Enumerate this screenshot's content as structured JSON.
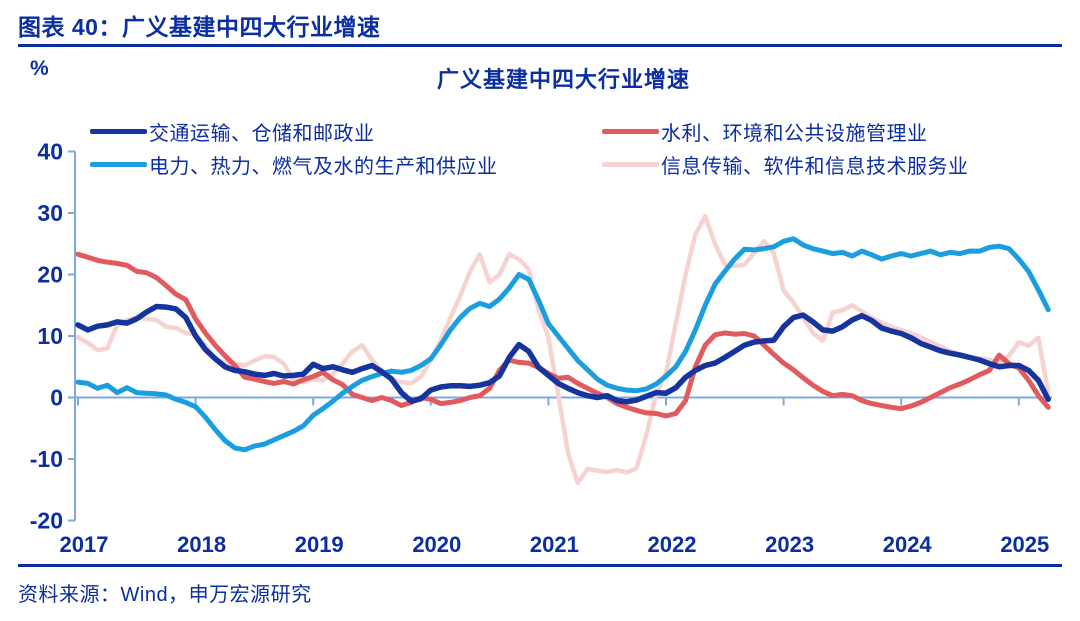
{
  "page": {
    "figure_label": "图表 40：广义基建中四大行业增速",
    "source": "资料来源：Wind，申万宏源研究"
  },
  "colors": {
    "text_navy": "#0B2EA0",
    "axis_blue": "#7FA8DC",
    "navy_line": "#16349E",
    "red_line": "#E15A5E",
    "cyan_line": "#1B9EE0",
    "pink_line": "#F6D2D0"
  },
  "chart_data": {
    "type": "line",
    "title": "广义基建中四大行业增速",
    "ylabel": "%",
    "xlabel": "",
    "grid": false,
    "legend_position": "top",
    "ylim": [
      -20,
      40
    ],
    "yticks": [
      40,
      30,
      20,
      10,
      0,
      -10,
      -20
    ],
    "xtick_labels": [
      "2017",
      "2018",
      "2019",
      "2020",
      "2021",
      "2022",
      "2023",
      "2024",
      "2025"
    ],
    "x_start": "2017-01",
    "x_end": "2025-04",
    "x_frequency": "monthly",
    "series": [
      {
        "name": "交通运输、仓储和邮政业",
        "color": "#16349E",
        "width": 5.5,
        "values": [
          11.8,
          11.0,
          11.6,
          11.8,
          12.3,
          12.1,
          12.8,
          13.9,
          14.8,
          14.7,
          14.4,
          13.0,
          10.0,
          7.8,
          6.3,
          5.0,
          4.4,
          4.2,
          3.8,
          3.6,
          3.9,
          3.5,
          3.6,
          3.8,
          5.4,
          4.7,
          5.0,
          4.5,
          4.1,
          4.7,
          5.2,
          4.2,
          3.0,
          0.8,
          -0.6,
          -0.2,
          1.2,
          1.7,
          1.9,
          1.9,
          1.8,
          2.0,
          2.4,
          3.5,
          6.5,
          8.6,
          7.5,
          4.9,
          3.6,
          2.3,
          1.5,
          0.8,
          0.3,
          0.0,
          0.3,
          -0.5,
          -0.7,
          -0.4,
          0.2,
          0.8,
          0.7,
          1.6,
          3.3,
          4.4,
          5.2,
          5.6,
          6.5,
          7.5,
          8.5,
          9.0,
          9.2,
          9.3,
          11.5,
          13.0,
          13.4,
          12.3,
          11.0,
          10.8,
          11.5,
          12.6,
          13.3,
          12.5,
          11.3,
          10.8,
          10.4,
          9.7,
          8.8,
          8.2,
          7.6,
          7.2,
          6.9,
          6.5,
          6.1,
          5.5,
          5.0,
          5.2,
          5.2,
          4.4,
          2.8,
          -0.3
        ]
      },
      {
        "name": "水利、环境和公共设施管理业",
        "color": "#E15A5E",
        "width": 5,
        "values": [
          23.3,
          22.8,
          22.3,
          22.0,
          21.8,
          21.5,
          20.5,
          20.3,
          19.5,
          18.2,
          16.8,
          15.9,
          12.8,
          10.5,
          8.5,
          6.8,
          5.2,
          3.3,
          3.0,
          2.6,
          2.3,
          2.6,
          2.2,
          2.9,
          3.4,
          4.1,
          2.9,
          2.1,
          0.5,
          0.0,
          -0.5,
          0.0,
          -0.5,
          -1.3,
          -0.8,
          0.0,
          -0.3,
          -1.0,
          -0.8,
          -0.5,
          0.0,
          0.3,
          1.5,
          4.4,
          6.1,
          5.7,
          5.6,
          4.9,
          3.9,
          3.1,
          3.3,
          2.3,
          1.5,
          0.7,
          0.0,
          -1.0,
          -1.6,
          -2.1,
          -2.5,
          -2.6,
          -3.0,
          -2.6,
          -0.5,
          5.0,
          8.5,
          10.2,
          10.5,
          10.3,
          10.4,
          10.0,
          8.5,
          7.0,
          5.6,
          4.5,
          3.2,
          2.0,
          1.0,
          0.3,
          0.5,
          0.3,
          -0.5,
          -1.0,
          -1.3,
          -1.6,
          -1.8,
          -1.4,
          -0.8,
          0.0,
          0.8,
          1.6,
          2.2,
          2.9,
          3.7,
          4.4,
          6.9,
          5.5,
          4.8,
          2.8,
          0.3,
          -1.6
        ]
      },
      {
        "name": "电力、热力、燃气及水的生产和供应业",
        "color": "#1B9EE0",
        "width": 5,
        "values": [
          2.5,
          2.3,
          1.5,
          2.0,
          0.8,
          1.6,
          0.8,
          0.7,
          0.6,
          0.4,
          -0.3,
          -0.8,
          -1.5,
          -3.2,
          -5.2,
          -7.0,
          -8.2,
          -8.5,
          -7.9,
          -7.6,
          -6.9,
          -6.2,
          -5.5,
          -4.6,
          -2.9,
          -1.8,
          -0.6,
          0.7,
          1.8,
          2.8,
          3.4,
          3.9,
          4.3,
          4.1,
          4.4,
          5.2,
          6.3,
          8.5,
          11.0,
          13.0,
          14.5,
          15.3,
          14.8,
          16.0,
          17.8,
          20.0,
          19.2,
          15.8,
          12.0,
          10.0,
          8.0,
          6.0,
          4.5,
          3.0,
          2.0,
          1.5,
          1.2,
          1.1,
          1.4,
          2.2,
          3.5,
          5.0,
          7.5,
          11.0,
          15.0,
          18.4,
          20.5,
          22.5,
          24.1,
          24.0,
          24.2,
          24.5,
          25.4,
          25.8,
          24.8,
          24.2,
          23.8,
          23.4,
          23.6,
          23.0,
          23.8,
          23.2,
          22.5,
          23.0,
          23.4,
          23.0,
          23.4,
          23.8,
          23.2,
          23.6,
          23.4,
          23.8,
          23.8,
          24.4,
          24.6,
          24.2,
          22.5,
          20.5,
          17.5,
          14.3
        ]
      },
      {
        "name": "信息传输、软件和信息技术服务业",
        "color": "#F6D2D0",
        "width": 4.5,
        "values": [
          9.8,
          8.9,
          7.7,
          8.0,
          11.8,
          12.6,
          13.0,
          12.8,
          12.6,
          11.5,
          11.3,
          10.5,
          10.3,
          8.5,
          6.2,
          5.7,
          5.5,
          5.2,
          6.0,
          6.7,
          6.6,
          5.5,
          2.9,
          2.5,
          3.0,
          2.8,
          3.8,
          5.5,
          7.5,
          8.5,
          6.1,
          4.4,
          2.8,
          2.5,
          2.3,
          3.4,
          6.1,
          9.3,
          13.0,
          16.5,
          20.5,
          23.3,
          18.7,
          20.0,
          23.3,
          22.5,
          20.8,
          14.3,
          9.8,
          0.5,
          -9.0,
          -13.9,
          -11.6,
          -11.9,
          -12.1,
          -11.8,
          -12.2,
          -11.5,
          -6.0,
          0.5,
          4.0,
          12.0,
          20.0,
          26.5,
          29.5,
          25.0,
          21.6,
          21.4,
          21.6,
          23.5,
          25.4,
          23.5,
          17.4,
          15.5,
          13.0,
          10.5,
          9.2,
          13.8,
          14.2,
          15.0,
          14.0,
          13.0,
          12.2,
          11.5,
          11.0,
          10.4,
          9.8,
          9.0,
          8.3,
          7.6,
          7.0,
          6.5,
          6.4,
          6.1,
          5.7,
          6.8,
          9.0,
          8.4,
          9.7,
          0.8
        ]
      }
    ]
  }
}
